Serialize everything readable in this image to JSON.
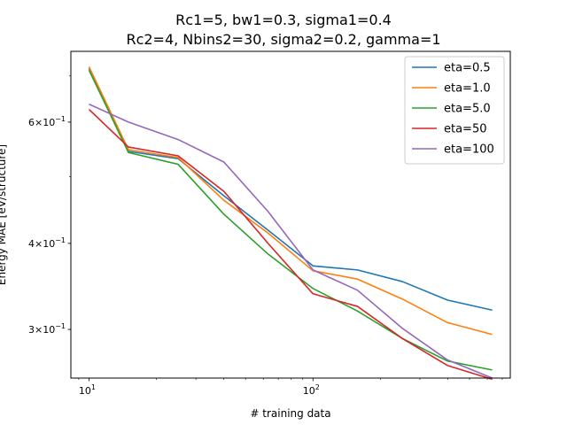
{
  "chart_data": {
    "type": "line",
    "title_line1": "Rc1=5, bw1=0.3, sigma1=0.4",
    "title_line2": "Rc2=4, Nbins2=30, sigma2=0.2, gamma=1",
    "xlabel": "# training data",
    "ylabel": "Energy MAE [eV/structure]",
    "xscale": "log",
    "yscale": "log",
    "xlim": [
      8.3,
      760
    ],
    "ylim": [
      0.255,
      0.76
    ],
    "x_ticks": [
      {
        "value": 10,
        "label": "10",
        "exp": "1"
      },
      {
        "value": 100,
        "label": "10",
        "exp": "2"
      }
    ],
    "y_ticks": [
      {
        "value": 0.3,
        "label": "3×10",
        "exp": "−1"
      },
      {
        "value": 0.4,
        "label": "4×10",
        "exp": "−1"
      },
      {
        "value": 0.6,
        "label": "6×10",
        "exp": "−1"
      }
    ],
    "legend_position": "top-right",
    "x": [
      10,
      15,
      25,
      40,
      63,
      100,
      158,
      251,
      398,
      631
    ],
    "series": [
      {
        "name": "eta=0.5",
        "color": "#1f77b4",
        "values": [
          0.718,
          0.544,
          0.531,
          0.469,
          0.418,
          0.371,
          0.366,
          0.352,
          0.331,
          0.32
        ]
      },
      {
        "name": "eta=1.0",
        "color": "#ff7f0e",
        "values": [
          0.722,
          0.547,
          0.533,
          0.462,
          0.414,
          0.365,
          0.355,
          0.332,
          0.307,
          0.295
        ]
      },
      {
        "name": "eta=5.0",
        "color": "#2ca02c",
        "values": [
          0.714,
          0.542,
          0.521,
          0.441,
          0.386,
          0.344,
          0.319,
          0.291,
          0.27,
          0.262
        ]
      },
      {
        "name": "eta=50",
        "color": "#d62728",
        "values": [
          0.626,
          0.552,
          0.536,
          0.476,
          0.4,
          0.338,
          0.324,
          0.291,
          0.266,
          0.254
        ]
      },
      {
        "name": "eta=100",
        "color": "#9467bd",
        "values": [
          0.637,
          0.6,
          0.566,
          0.525,
          0.445,
          0.366,
          0.342,
          0.301,
          0.271,
          0.255
        ]
      }
    ]
  }
}
